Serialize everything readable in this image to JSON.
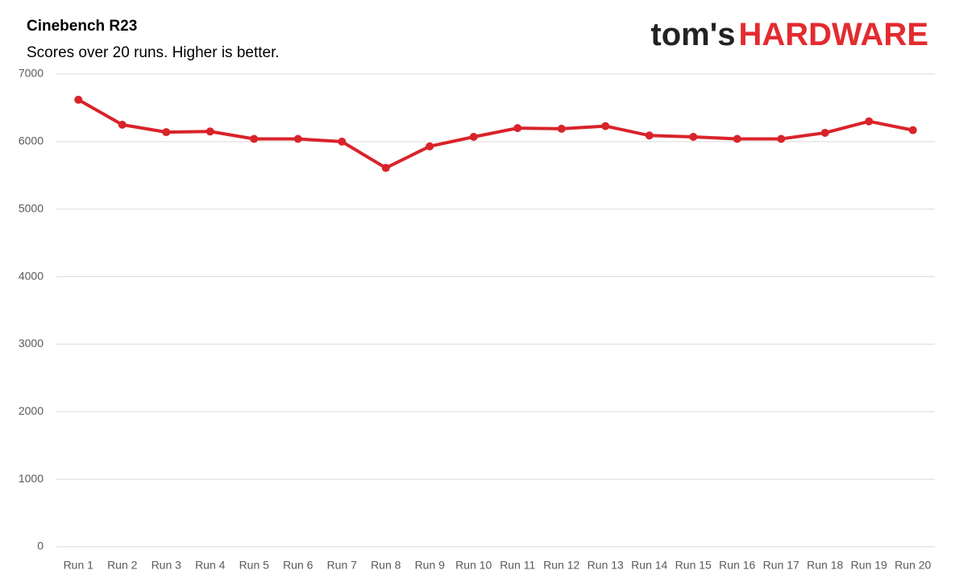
{
  "chart_data": {
    "type": "line",
    "title": "Cinebench R23",
    "subtitle": "Scores over 20 runs. Higher is better.",
    "logo": {
      "prefix": "tom's",
      "brand": "HARDWARE"
    },
    "categories": [
      "Run 1",
      "Run 2",
      "Run 3",
      "Run 4",
      "Run 5",
      "Run 6",
      "Run 7",
      "Run 8",
      "Run 9",
      "Run 10",
      "Run 11",
      "Run 12",
      "Run 13",
      "Run 14",
      "Run 15",
      "Run 16",
      "Run 17",
      "Run 18",
      "Run 19",
      "Run 20"
    ],
    "values": [
      6620,
      6250,
      6140,
      6150,
      6040,
      6040,
      6000,
      5610,
      5930,
      6070,
      6200,
      6190,
      6230,
      6090,
      6070,
      6040,
      6040,
      6130,
      6300,
      6170
    ],
    "color": "#d9232a",
    "ylim": [
      0,
      7000
    ],
    "yticks": [
      0,
      1000,
      2000,
      3000,
      4000,
      5000,
      6000,
      7000
    ],
    "grid": true
  }
}
